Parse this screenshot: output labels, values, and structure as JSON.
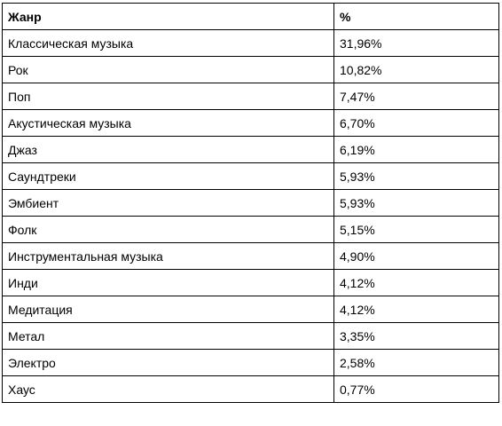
{
  "table": {
    "headers": {
      "genre": "Жанр",
      "percent": "%"
    },
    "rows": [
      {
        "genre": "Классическая музыка",
        "percent": "31,96%"
      },
      {
        "genre": "Рок",
        "percent": "10,82%"
      },
      {
        "genre": "Поп",
        "percent": "7,47%"
      },
      {
        "genre": "Акустическая музыка",
        "percent": "6,70%"
      },
      {
        "genre": "Джаз",
        "percent": "6,19%"
      },
      {
        "genre": "Саундтреки",
        "percent": "5,93%"
      },
      {
        "genre": "Эмбиент",
        "percent": "5,93%"
      },
      {
        "genre": "Фолк",
        "percent": "5,15%"
      },
      {
        "genre": "Инструментальная музыка",
        "percent": "4,90%"
      },
      {
        "genre": "Инди",
        "percent": "4,12%"
      },
      {
        "genre": "Медитация",
        "percent": "4,12%"
      },
      {
        "genre": "Метал",
        "percent": "3,35%"
      },
      {
        "genre": "Электро",
        "percent": "2,58%"
      },
      {
        "genre": "Хаус",
        "percent": "0,77%"
      }
    ]
  },
  "colors": {
    "text": "#000000",
    "border": "#000000",
    "background": "#ffffff"
  }
}
